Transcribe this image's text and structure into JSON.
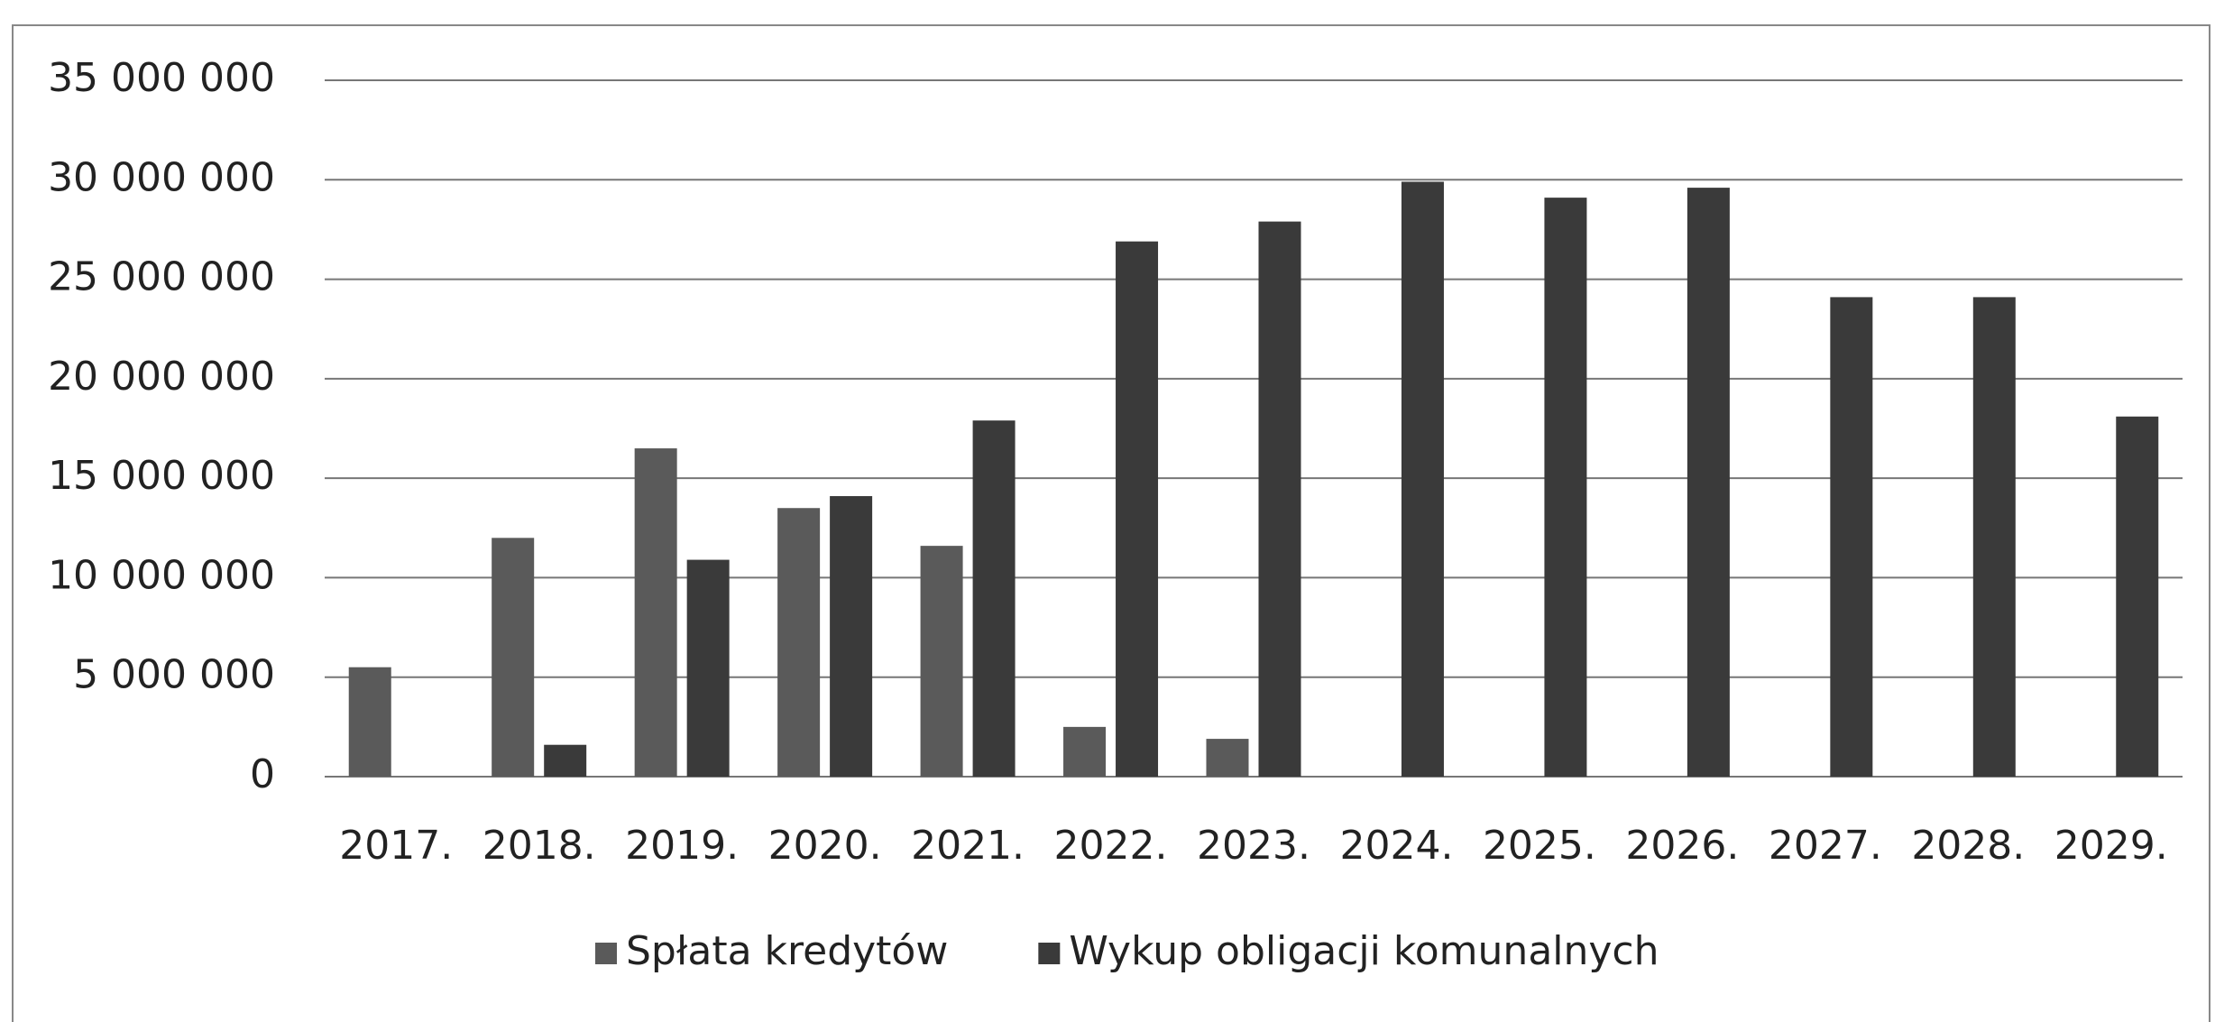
{
  "chart_data": {
    "type": "bar",
    "categories": [
      "2017.",
      "2018.",
      "2019.",
      "2020.",
      "2021.",
      "2022.",
      "2023.",
      "2024.",
      "2025.",
      "2026.",
      "2027.",
      "2028.",
      "2029."
    ],
    "series": [
      {
        "name": "Spłata kredytów",
        "color": "#5a5a5a",
        "values": [
          5500000,
          12000000,
          16500000,
          13500000,
          11600000,
          2500000,
          1900000,
          0,
          0,
          0,
          0,
          0,
          0
        ]
      },
      {
        "name": "Wykup obligacji komunalnych",
        "color": "#3a3a3a",
        "values": [
          0,
          1600000,
          10900000,
          14100000,
          17900000,
          26900000,
          27900000,
          29900000,
          29100000,
          29600000,
          24100000,
          24100000,
          18100000
        ]
      }
    ],
    "ylim": [
      0,
      35000000
    ],
    "yticks": [
      0,
      {
        "value": 5000000,
        "label": "5 000 000"
      },
      {
        "value": 10000000,
        "label": "10 000 000"
      },
      {
        "value": 15000000,
        "label": "15 000 000"
      },
      {
        "value": 20000000,
        "label": "20 000 000"
      },
      {
        "value": 25000000,
        "label": "25 000 000"
      },
      {
        "value": 30000000,
        "label": "30 000 000"
      },
      {
        "value": 35000000,
        "label": "35 000 000"
      }
    ],
    "grid": true,
    "legend": "bottom"
  }
}
